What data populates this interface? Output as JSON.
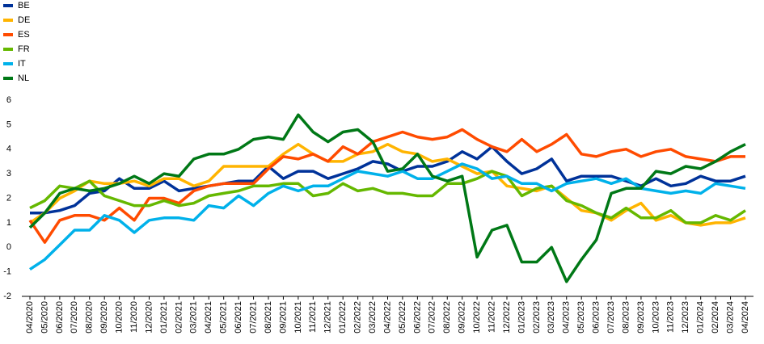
{
  "chart_data": {
    "type": "line",
    "categories": [
      "04/2020",
      "05/2020",
      "06/2020",
      "07/2020",
      "08/2020",
      "09/2020",
      "10/2020",
      "11/2020",
      "12/2020",
      "01/2021",
      "02/2021",
      "03/2021",
      "04/2021",
      "05/2021",
      "06/2021",
      "07/2021",
      "08/2021",
      "09/2021",
      "10/2021",
      "11/2021",
      "12/2021",
      "01/2022",
      "02/2022",
      "03/2022",
      "04/2022",
      "05/2022",
      "06/2022",
      "07/2022",
      "08/2022",
      "09/2022",
      "10/2022",
      "11/2022",
      "12/2022",
      "01/2023",
      "02/2023",
      "03/2023",
      "04/2023",
      "05/2023",
      "06/2023",
      "07/2023",
      "08/2023",
      "09/2023",
      "10/2023",
      "11/2023",
      "12/2023",
      "01/2024",
      "02/2024",
      "03/2024",
      "04/2024"
    ],
    "series": [
      {
        "name": "BE",
        "color": "#003299",
        "values": [
          1.4,
          1.4,
          1.5,
          1.7,
          2.2,
          2.3,
          2.8,
          2.4,
          2.4,
          2.7,
          2.3,
          2.4,
          2.5,
          2.6,
          2.7,
          2.7,
          3.3,
          2.8,
          3.1,
          3.1,
          2.8,
          3.0,
          3.2,
          3.5,
          3.4,
          3.1,
          3.3,
          3.3,
          3.5,
          3.9,
          3.6,
          4.1,
          3.5,
          3.0,
          3.2,
          3.6,
          2.7,
          2.9,
          2.9,
          2.9,
          2.7,
          2.5,
          2.8,
          2.5,
          2.6,
          2.9,
          2.7,
          2.7,
          2.9
        ]
      },
      {
        "name": "DE",
        "color": "#ffb400",
        "values": [
          1.0,
          1.4,
          2.0,
          2.3,
          2.7,
          2.6,
          2.6,
          2.7,
          2.5,
          2.8,
          2.8,
          2.5,
          2.7,
          3.3,
          3.3,
          3.3,
          3.3,
          3.8,
          4.2,
          3.8,
          3.5,
          3.5,
          3.8,
          3.9,
          4.2,
          3.9,
          3.8,
          3.5,
          3.6,
          3.3,
          3.0,
          3.1,
          2.5,
          2.4,
          2.3,
          2.5,
          2.0,
          1.5,
          1.4,
          1.1,
          1.5,
          1.8,
          1.1,
          1.3,
          1.0,
          0.9,
          1.0,
          1.0,
          1.2
        ]
      },
      {
        "name": "ES",
        "color": "#ff4b00",
        "values": [
          1.1,
          0.2,
          1.1,
          1.3,
          1.3,
          1.1,
          1.6,
          1.1,
          2.0,
          2.0,
          1.8,
          2.3,
          2.5,
          2.6,
          2.6,
          2.6,
          3.2,
          3.7,
          3.6,
          3.8,
          3.5,
          4.1,
          3.8,
          4.3,
          4.5,
          4.7,
          4.5,
          4.4,
          4.5,
          4.8,
          4.4,
          4.1,
          3.9,
          4.4,
          3.9,
          4.2,
          4.6,
          3.8,
          3.7,
          3.9,
          4.0,
          3.7,
          3.9,
          4.0,
          3.7,
          3.6,
          3.5,
          3.7,
          3.7
        ]
      },
      {
        "name": "FR",
        "color": "#65b800",
        "values": [
          1.6,
          1.9,
          2.5,
          2.4,
          2.7,
          2.1,
          1.9,
          1.7,
          1.7,
          1.9,
          1.7,
          1.8,
          2.1,
          2.2,
          2.3,
          2.5,
          2.5,
          2.6,
          2.6,
          2.1,
          2.2,
          2.6,
          2.3,
          2.4,
          2.2,
          2.2,
          2.1,
          2.1,
          2.6,
          2.6,
          2.8,
          3.1,
          2.9,
          2.1,
          2.4,
          2.5,
          1.9,
          1.7,
          1.4,
          1.2,
          1.6,
          1.2,
          1.2,
          1.5,
          1.0,
          1.0,
          1.3,
          1.1,
          1.5
        ]
      },
      {
        "name": "IT",
        "color": "#00b1ea",
        "values": [
          -0.9,
          -0.5,
          0.1,
          0.7,
          0.7,
          1.3,
          1.1,
          0.6,
          1.1,
          1.2,
          1.2,
          1.1,
          1.7,
          1.6,
          2.1,
          1.7,
          2.2,
          2.5,
          2.3,
          2.5,
          2.5,
          2.8,
          3.1,
          3.0,
          2.9,
          3.1,
          2.8,
          2.8,
          3.1,
          3.4,
          3.2,
          2.8,
          2.9,
          2.6,
          2.6,
          2.3,
          2.6,
          2.7,
          2.8,
          2.6,
          2.8,
          2.4,
          2.3,
          2.2,
          2.3,
          2.2,
          2.6,
          2.5,
          2.4
        ]
      },
      {
        "name": "NL",
        "color": "#007816",
        "values": [
          0.8,
          1.4,
          2.2,
          2.4,
          2.3,
          2.4,
          2.6,
          2.9,
          2.6,
          3.0,
          2.9,
          3.6,
          3.8,
          3.8,
          4.0,
          4.4,
          4.5,
          4.4,
          5.4,
          4.7,
          4.3,
          4.7,
          4.8,
          4.3,
          3.1,
          3.2,
          3.8,
          2.9,
          2.7,
          2.9,
          -0.4,
          0.7,
          0.9,
          -0.6,
          -0.6,
          0.0,
          -1.4,
          -0.5,
          0.3,
          2.2,
          2.4,
          2.4,
          3.1,
          3.0,
          3.3,
          3.2,
          3.5,
          3.9,
          4.2
        ]
      }
    ],
    "ylim": [
      -2,
      6
    ],
    "yticks": [
      -2,
      -1,
      0,
      1,
      2,
      3,
      4,
      5,
      6
    ],
    "legend": "top-left"
  }
}
